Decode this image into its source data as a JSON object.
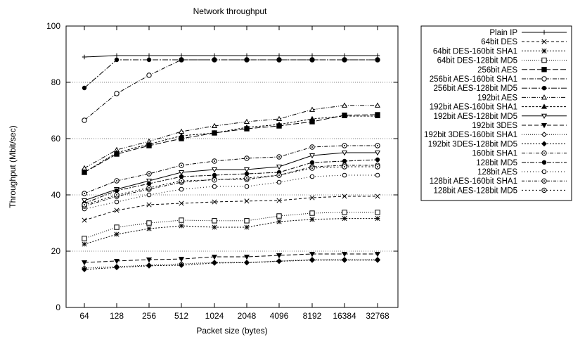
{
  "chart_data": {
    "type": "line",
    "title": "Network throughput",
    "xlabel": "Packet size (bytes)",
    "ylabel": "Throughput (Mbit/sec)",
    "ylim": [
      0,
      100
    ],
    "yticks": [
      "0",
      "20",
      "40",
      "60",
      "80",
      "100"
    ],
    "categories": [
      "64",
      "128",
      "256",
      "512",
      "1024",
      "2048",
      "4096",
      "8192",
      "16384",
      "32768"
    ],
    "grid": "horizontal",
    "legend_position": "outside-right",
    "series": [
      {
        "name": "Plain IP",
        "marker": "plus",
        "dash": "",
        "values": [
          89,
          89.5,
          89.5,
          89.5,
          89.5,
          89.5,
          89.5,
          89.5,
          89.5,
          89.5
        ]
      },
      {
        "name": "64bit DES",
        "marker": "x",
        "dash": "4,3",
        "values": [
          31,
          34.5,
          36.5,
          37,
          37.5,
          37.8,
          38,
          39,
          39.5,
          39.5
        ]
      },
      {
        "name": "64bit DES-160bit SHA1",
        "marker": "star",
        "dash": "2,2",
        "values": [
          22.5,
          26,
          28,
          29,
          28.5,
          28.5,
          30.5,
          31.3,
          31.6,
          31.6
        ]
      },
      {
        "name": "64bit DES-128bit MD5",
        "marker": "square",
        "dash": "1,2",
        "values": [
          24.5,
          28.5,
          30,
          31,
          30.8,
          30.8,
          32.5,
          33.5,
          33.8,
          33.8
        ]
      },
      {
        "name": "256bit AES",
        "marker": "filled-square",
        "dash": "8,3",
        "values": [
          48,
          54.5,
          57.5,
          60,
          62,
          63.5,
          64.5,
          66,
          68.3,
          68.5
        ]
      },
      {
        "name": "256bit AES-160bit SHA1",
        "marker": "circle",
        "dash": "6,2,1,2",
        "values": [
          66.5,
          76,
          82.5,
          88,
          88,
          88,
          88,
          88,
          88,
          88
        ]
      },
      {
        "name": "256bit AES-128bit MD5",
        "marker": "filled-circle",
        "dash": "8,2,2,2",
        "values": [
          78,
          88,
          88,
          88,
          88,
          88,
          88,
          88,
          88,
          88
        ]
      },
      {
        "name": "192bit AES",
        "marker": "triangle",
        "dash": "6,2,1,2,1,2",
        "values": [
          49.5,
          56,
          59,
          62.5,
          64.5,
          66,
          67,
          70.3,
          71.8,
          71.8
        ]
      },
      {
        "name": "192bit AES-160bit SHA1",
        "marker": "filled-triangle",
        "dash": "3,2",
        "values": [
          48,
          55,
          58,
          61,
          62,
          64,
          65,
          67,
          68,
          68
        ]
      },
      {
        "name": "192bit AES-128bit MD5",
        "marker": "triangle-down",
        "dash": "",
        "values": [
          38,
          42,
          45,
          48,
          49,
          49,
          50,
          54,
          55,
          55
        ]
      },
      {
        "name": "192bit 3DES",
        "marker": "filled-triangle-down",
        "dash": "6,3",
        "values": [
          16,
          16.5,
          17,
          17.2,
          18,
          18,
          18.5,
          19,
          19,
          19
        ]
      },
      {
        "name": "192bit 3DES-160bit SHA1",
        "marker": "diamond",
        "dash": "1,2",
        "values": [
          14,
          14.5,
          15,
          15.5,
          16,
          16,
          16.5,
          17,
          17,
          17
        ]
      },
      {
        "name": "192bit 3DES-128bit MD5",
        "marker": "filled-diamond",
        "dash": "2,2",
        "values": [
          13.5,
          14.2,
          14.8,
          15,
          15.8,
          15.9,
          16.4,
          16.8,
          16.8,
          16.8
        ]
      },
      {
        "name": "160bit SHA1",
        "marker": "circle-dot",
        "dash": "5,2,1,2",
        "values": [
          40.5,
          45,
          47.5,
          50.5,
          52,
          53,
          53.5,
          57,
          57.5,
          57.5
        ]
      },
      {
        "name": "128bit MD5",
        "marker": "filled-circle",
        "dash": "6,2,2,2",
        "values": [
          37,
          41.5,
          44,
          46.5,
          47,
          47.5,
          48,
          51.5,
          52,
          52.5
        ]
      },
      {
        "name": "128bit AES",
        "marker": "circle-small",
        "dash": "1,3",
        "values": [
          35,
          37.5,
          40,
          42,
          43,
          43,
          44.5,
          46.5,
          47,
          47
        ]
      },
      {
        "name": "128bit AES-160bit SHA1",
        "marker": "circle-dot",
        "dash": "4,2,1,2",
        "values": [
          36,
          39.5,
          42,
          44.5,
          45.5,
          45.5,
          47,
          50,
          50.5,
          50.5
        ]
      },
      {
        "name": "128bit AES-128bit MD5",
        "marker": "circle-dot",
        "dash": "2,3",
        "values": [
          36.5,
          40,
          42.5,
          45,
          45.3,
          46,
          47,
          49.5,
          50,
          50
        ]
      }
    ]
  }
}
